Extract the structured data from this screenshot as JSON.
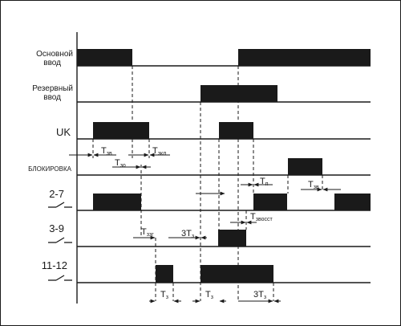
{
  "signals": {
    "main_input": {
      "line1": "Основной",
      "line2": "ввод"
    },
    "reserve_input": {
      "line1": "Резервный",
      "line2": "ввод"
    },
    "uk": "UK",
    "blocking": "БЛОКИРОВКА",
    "relay_2_7": "2-7",
    "relay_3_9": "3-9",
    "relay_11_12": "11-12"
  },
  "timings": {
    "t_zv": {
      "main": "T",
      "sub": "зв"
    },
    "t_zkl": {
      "main": "T",
      "sub": "зкл"
    },
    "t_zo": {
      "main": "T",
      "sub": "зо"
    },
    "t_p": {
      "main": "T",
      "sub": "п"
    },
    "t_zv2": {
      "main": "T",
      "sub": "зв"
    },
    "t_zvosst": {
      "main": "T",
      "sub": "звосст"
    },
    "t_zzg": {
      "main": "T",
      "sub": "ззг"
    },
    "t_3tz_upper": {
      "main": "3T",
      "sub": "з"
    },
    "t_tz_a": {
      "main": "T",
      "sub": "з"
    },
    "t_tz_b": {
      "main": "T",
      "sub": "з"
    },
    "t_3tz_lower": {
      "main": "3T",
      "sub": "з"
    }
  }
}
